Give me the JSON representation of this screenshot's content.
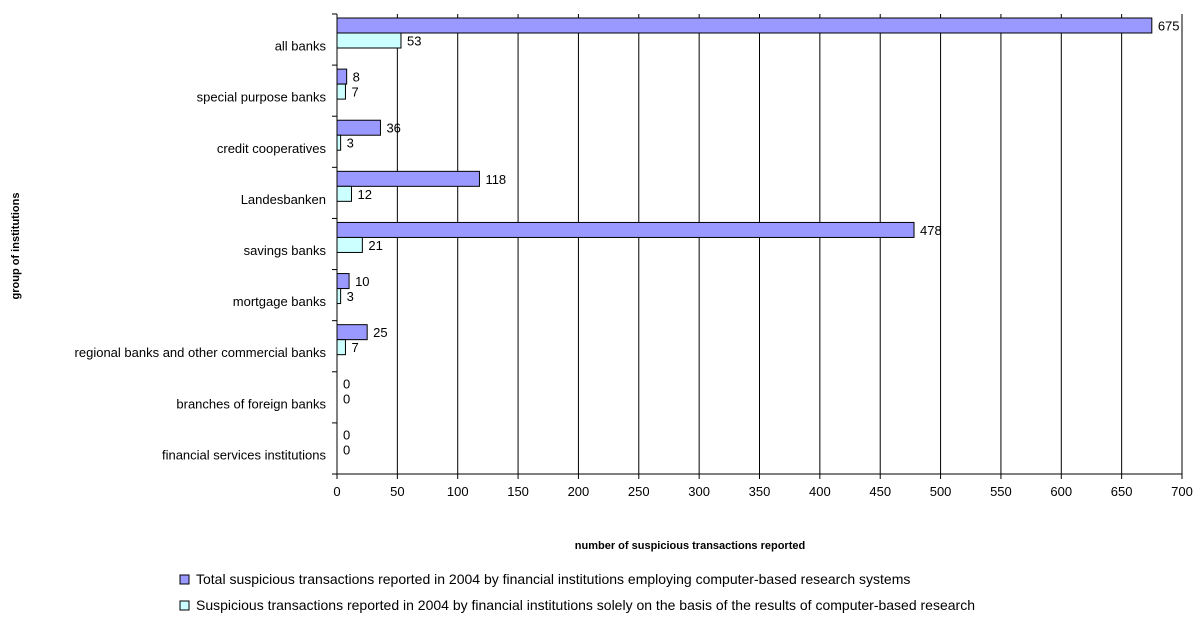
{
  "chart_data": {
    "type": "bar",
    "orientation": "horizontal",
    "categories": [
      "all banks",
      "special purpose banks",
      "credit cooperatives",
      "Landesbanken",
      "savings banks",
      "mortgage banks",
      "regional banks and other commercial banks",
      "branches of foreign banks",
      "financial services institutions"
    ],
    "series": [
      {
        "name": "Total suspicious transactions reported in 2004 by financial institutions employing computer-based research systems",
        "color": "#9999ff",
        "values": [
          675,
          8,
          36,
          118,
          478,
          10,
          25,
          0,
          0
        ]
      },
      {
        "name": "Suspicious transactions reported in 2004 by financial institutions solely on the basis of the results of computer-based research",
        "color": "#ccffff",
        "values": [
          53,
          7,
          3,
          12,
          21,
          3,
          7,
          0,
          0
        ]
      }
    ],
    "xlabel": "number of suspicious transactions reported",
    "ylabel": "group of institutions",
    "xlim": [
      0,
      700
    ],
    "xticks": [
      0,
      50,
      100,
      150,
      200,
      250,
      300,
      350,
      400,
      450,
      500,
      550,
      600,
      650,
      700
    ],
    "grid": "vertical",
    "legend_position": "bottom"
  }
}
